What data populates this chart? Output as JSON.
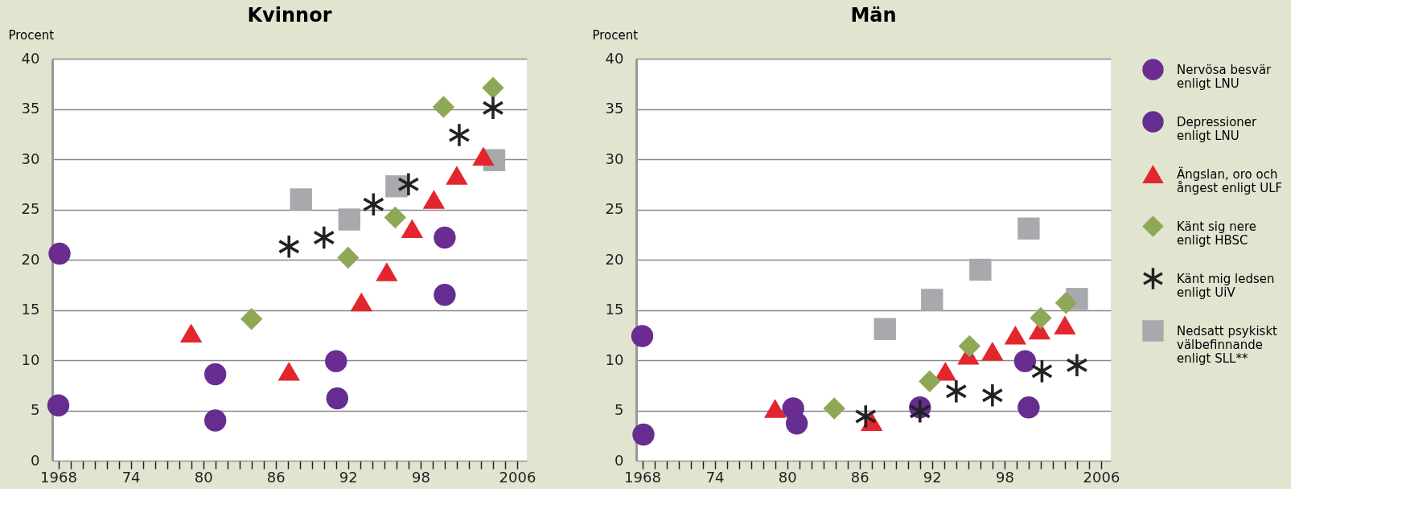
{
  "chart_data": [
    {
      "type": "scatter",
      "title": "Kvinnor",
      "ylabel": "Procent",
      "xlim": [
        1967.5,
        2006.8
      ],
      "ylim": [
        0,
        40
      ],
      "yticks": [
        0,
        5,
        10,
        15,
        20,
        25,
        30,
        35,
        40
      ],
      "xticks": [
        {
          "value": 1968,
          "label": "1968"
        },
        {
          "value": 1969,
          "label": null
        },
        {
          "value": 1970,
          "label": null
        },
        {
          "value": 1971,
          "label": null
        },
        {
          "value": 1972,
          "label": null
        },
        {
          "value": 1973,
          "label": null
        },
        {
          "value": 1974,
          "label": "74"
        },
        {
          "value": 1975,
          "label": null
        },
        {
          "value": 1976,
          "label": null
        },
        {
          "value": 1977,
          "label": null
        },
        {
          "value": 1978,
          "label": null
        },
        {
          "value": 1979,
          "label": null
        },
        {
          "value": 1980,
          "label": "80"
        },
        {
          "value": 1981,
          "label": null
        },
        {
          "value": 1982,
          "label": null
        },
        {
          "value": 1983,
          "label": null
        },
        {
          "value": 1984,
          "label": null
        },
        {
          "value": 1985,
          "label": null
        },
        {
          "value": 1986,
          "label": "86"
        },
        {
          "value": 1987,
          "label": null
        },
        {
          "value": 1988,
          "label": null
        },
        {
          "value": 1989,
          "label": null
        },
        {
          "value": 1990,
          "label": null
        },
        {
          "value": 1991,
          "label": null
        },
        {
          "value": 1992,
          "label": "92"
        },
        {
          "value": 1993,
          "label": null
        },
        {
          "value": 1994,
          "label": null
        },
        {
          "value": 1995,
          "label": null
        },
        {
          "value": 1996,
          "label": null
        },
        {
          "value": 1997,
          "label": null
        },
        {
          "value": 1998,
          "label": "98"
        },
        {
          "value": 1999,
          "label": null
        },
        {
          "value": 2000,
          "label": null
        },
        {
          "value": 2001,
          "label": null
        },
        {
          "value": 2002,
          "label": null
        },
        {
          "value": 2003,
          "label": null
        },
        {
          "value": 2004,
          "label": null
        },
        {
          "value": 2005,
          "label": null
        },
        {
          "value": 2006,
          "label": "2006"
        }
      ],
      "grid": "y",
      "legend": "right",
      "series": [
        {
          "name": "Nervösa besvär\nenligt LNU",
          "color": "#6a2c91",
          "marker": "circle",
          "x": [
            1968.1,
            1981.0,
            1991.0,
            2000.0
          ],
          "values": [
            20.6,
            8.6,
            9.9,
            22.2
          ]
        },
        {
          "name": "Depressioner\nenligt LNU",
          "color": "#652d90",
          "marker": "circle",
          "x": [
            1968.0,
            1981.0,
            1991.1,
            2000.0
          ],
          "values": [
            5.5,
            4.0,
            6.2,
            16.5
          ]
        },
        {
          "name": "Ängslan, oro och\nångest enligt ULF",
          "color": "#e3262e",
          "marker": "triangle",
          "x": [
            1979.0,
            1987.1,
            1993.1,
            1995.2,
            1997.3,
            1999.1,
            2001.0,
            2003.2
          ],
          "values": [
            12.7,
            8.9,
            15.8,
            18.8,
            23.1,
            26.0,
            28.4,
            30.3
          ]
        },
        {
          "name": "Känt sig nere\nenligt HBSC",
          "color": "#8fa857",
          "marker": "diamond",
          "x": [
            1984.0,
            1992.0,
            1995.9,
            1999.9,
            2004.0
          ],
          "values": [
            14.1,
            20.2,
            24.2,
            35.2,
            37.1
          ]
        },
        {
          "name": "Känt mig ledsen\nenligt UiV",
          "color": "#222222",
          "marker": "star",
          "x": [
            1987.1,
            1990.0,
            1994.1,
            1997.0,
            2001.2,
            2004.0
          ],
          "values": [
            21.3,
            22.2,
            25.5,
            27.5,
            32.4,
            35.1
          ]
        },
        {
          "name": "Nedsatt psykiskt\nvälbefinnande\nenligt SLL**",
          "color": "#a7a9ac",
          "marker": "square",
          "x": [
            1988.1,
            1992.1,
            1996.0,
            2004.1
          ],
          "values": [
            26.0,
            24.0,
            27.3,
            29.9
          ]
        }
      ]
    },
    {
      "type": "scatter",
      "title": "Män",
      "ylabel": "Procent",
      "xlim": [
        1967.5,
        2006.8
      ],
      "ylim": [
        0,
        40
      ],
      "yticks": [
        0,
        5,
        10,
        15,
        20,
        25,
        30,
        35,
        40
      ],
      "xticks": [
        {
          "value": 1968,
          "label": "1968"
        },
        {
          "value": 1969,
          "label": null
        },
        {
          "value": 1970,
          "label": null
        },
        {
          "value": 1971,
          "label": null
        },
        {
          "value": 1972,
          "label": null
        },
        {
          "value": 1973,
          "label": null
        },
        {
          "value": 1974,
          "label": "74"
        },
        {
          "value": 1975,
          "label": null
        },
        {
          "value": 1976,
          "label": null
        },
        {
          "value": 1977,
          "label": null
        },
        {
          "value": 1978,
          "label": null
        },
        {
          "value": 1979,
          "label": null
        },
        {
          "value": 1980,
          "label": "80"
        },
        {
          "value": 1981,
          "label": null
        },
        {
          "value": 1982,
          "label": null
        },
        {
          "value": 1983,
          "label": null
        },
        {
          "value": 1984,
          "label": null
        },
        {
          "value": 1985,
          "label": null
        },
        {
          "value": 1986,
          "label": "86"
        },
        {
          "value": 1987,
          "label": null
        },
        {
          "value": 1988,
          "label": null
        },
        {
          "value": 1989,
          "label": null
        },
        {
          "value": 1990,
          "label": null
        },
        {
          "value": 1991,
          "label": null
        },
        {
          "value": 1992,
          "label": "92"
        },
        {
          "value": 1993,
          "label": null
        },
        {
          "value": 1994,
          "label": null
        },
        {
          "value": 1995,
          "label": null
        },
        {
          "value": 1996,
          "label": null
        },
        {
          "value": 1997,
          "label": null
        },
        {
          "value": 1998,
          "label": "98"
        },
        {
          "value": 1999,
          "label": null
        },
        {
          "value": 2000,
          "label": null
        },
        {
          "value": 2001,
          "label": null
        },
        {
          "value": 2002,
          "label": null
        },
        {
          "value": 2003,
          "label": null
        },
        {
          "value": 2004,
          "label": null
        },
        {
          "value": 2005,
          "label": null
        },
        {
          "value": 2006,
          "label": "2006"
        }
      ],
      "grid": "y",
      "legend": "right",
      "series": [
        {
          "name": "Nervösa besvär\nenligt LNU",
          "color": "#6a2c91",
          "marker": "circle",
          "x": [
            1968.0,
            1980.5,
            1999.7
          ],
          "values": [
            12.4,
            5.2,
            9.9
          ]
        },
        {
          "name": "Depressioner\nenligt LNU",
          "color": "#652d90",
          "marker": "circle",
          "x": [
            1968.1,
            1980.8,
            1991.0,
            2000.0
          ],
          "values": [
            2.6,
            3.7,
            5.3,
            5.3
          ]
        },
        {
          "name": "Ängslan, oro och\nångest enligt ULF",
          "color": "#e3262e",
          "marker": "triangle",
          "x": [
            1979.0,
            1987.0,
            1993.1,
            1995.0,
            1997.0,
            1998.9,
            2000.9,
            2003.0
          ],
          "values": [
            5.2,
            3.9,
            8.9,
            10.5,
            10.9,
            12.5,
            13.0,
            13.5
          ]
        },
        {
          "name": "Känt sig nere\nenligt HBSC",
          "color": "#8fa857",
          "marker": "diamond",
          "x": [
            1983.9,
            1991.8,
            1995.1,
            2001.0,
            2003.1
          ],
          "values": [
            5.2,
            7.9,
            11.4,
            14.2,
            15.7
          ]
        },
        {
          "name": "Känt mig ledsen\nenligt UiV",
          "color": "#222222",
          "marker": "star",
          "x": [
            1986.5,
            1991.0,
            1994.0,
            1997.0,
            2001.1,
            2004.0
          ],
          "values": [
            4.4,
            4.9,
            6.9,
            6.5,
            8.9,
            9.5
          ]
        },
        {
          "name": "Nedsatt psykiskt\nvälbefinnande\nenligt SLL**",
          "color": "#a7a9ac",
          "marker": "square",
          "x": [
            1988.1,
            1992.0,
            1996.0,
            2000.0,
            2004.0
          ],
          "values": [
            13.1,
            16.0,
            19.0,
            23.1,
            16.1
          ]
        }
      ]
    }
  ]
}
